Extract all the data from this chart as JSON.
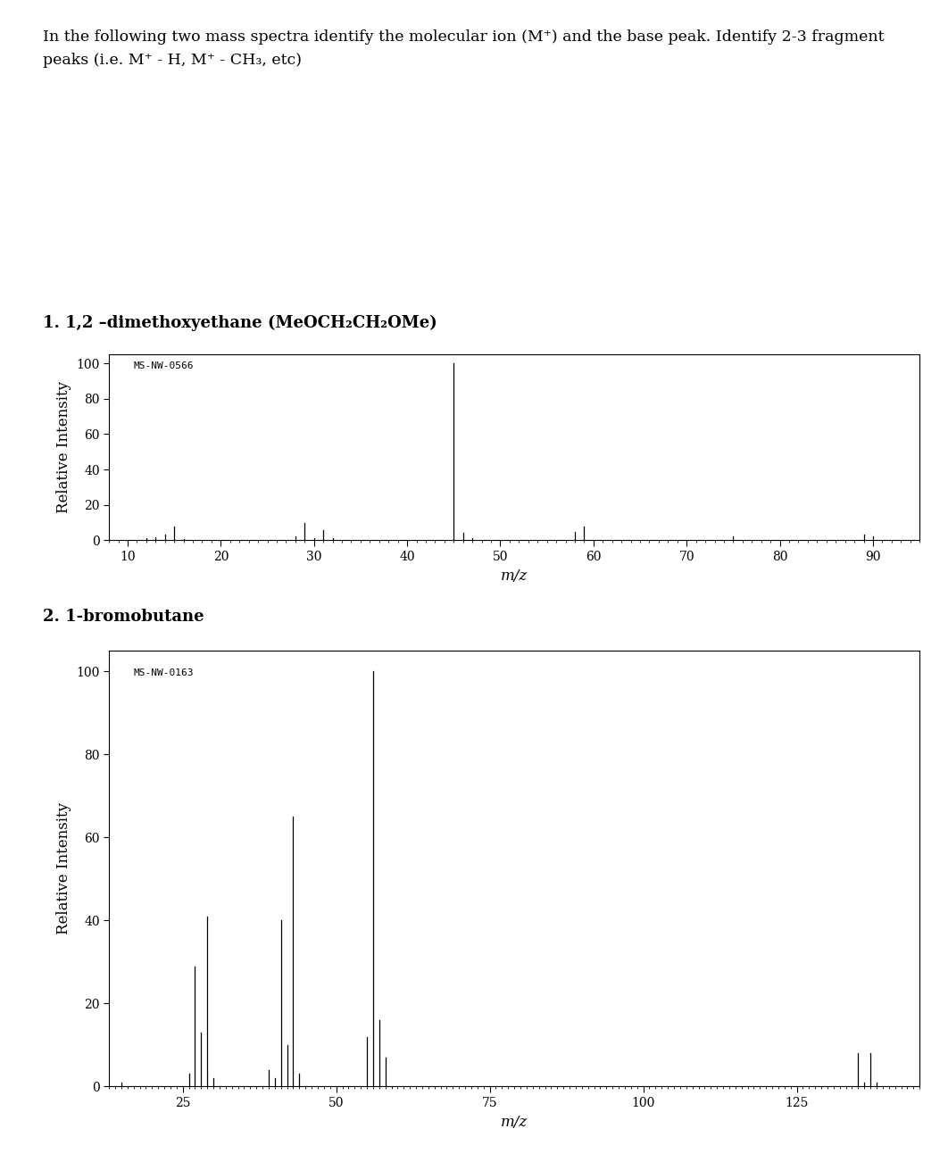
{
  "title_line1": "In the following two mass spectra identify the molecular ion (M⁺) and the base peak. Identify 2-3 fragment",
  "title_line2": "peaks (i.e. M⁺ - H, M⁺ - CH₃, etc)",
  "spectrum1": {
    "label": "1. 1,2 –dimethoxyethane (MeOCH₂CH₂OMe)",
    "watermark": "MS-NW-0566",
    "xlim": [
      8,
      95
    ],
    "ylim": [
      0,
      105
    ],
    "xticks": [
      10,
      20,
      30,
      40,
      50,
      60,
      70,
      80,
      90
    ],
    "yticks": [
      0,
      20,
      40,
      60,
      80,
      100
    ],
    "xlabel": "m/z",
    "ylabel": "Relative Intensity",
    "peaks": [
      [
        12,
        1
      ],
      [
        13,
        1.5
      ],
      [
        14,
        3
      ],
      [
        15,
        8
      ],
      [
        16,
        0.5
      ],
      [
        28,
        2
      ],
      [
        29,
        10
      ],
      [
        30,
        1
      ],
      [
        31,
        6
      ],
      [
        32,
        1
      ],
      [
        45,
        100
      ],
      [
        46,
        4
      ],
      [
        47,
        1
      ],
      [
        58,
        5
      ],
      [
        59,
        8
      ],
      [
        75,
        2
      ],
      [
        89,
        3
      ],
      [
        90,
        2
      ]
    ]
  },
  "spectrum2": {
    "label": "2. 1-bromobutane",
    "watermark": "MS-NW-0163",
    "xlim": [
      13,
      145
    ],
    "ylim": [
      0,
      105
    ],
    "xticks": [
      25,
      50,
      75,
      100,
      125
    ],
    "yticks": [
      0,
      20,
      40,
      60,
      80,
      100
    ],
    "xlabel": "m/z",
    "ylabel": "Relative Intensity",
    "peaks": [
      [
        15,
        1
      ],
      [
        26,
        3
      ],
      [
        27,
        29
      ],
      [
        28,
        13
      ],
      [
        29,
        41
      ],
      [
        30,
        2
      ],
      [
        39,
        4
      ],
      [
        40,
        2
      ],
      [
        41,
        40
      ],
      [
        42,
        10
      ],
      [
        43,
        65
      ],
      [
        44,
        3
      ],
      [
        55,
        12
      ],
      [
        56,
        100
      ],
      [
        57,
        16
      ],
      [
        58,
        7
      ],
      [
        135,
        8
      ],
      [
        136,
        1
      ],
      [
        137,
        8
      ],
      [
        138,
        1
      ]
    ]
  },
  "figure_bg": "#ffffff",
  "plot_bg": "#ffffff",
  "bar_color": "#000000",
  "font_family": "serif",
  "title_fontsize": 12.5,
  "label_fontsize": 12,
  "tick_fontsize": 10,
  "watermark_fontsize": 8,
  "spectrum_label_fontsize": 13
}
